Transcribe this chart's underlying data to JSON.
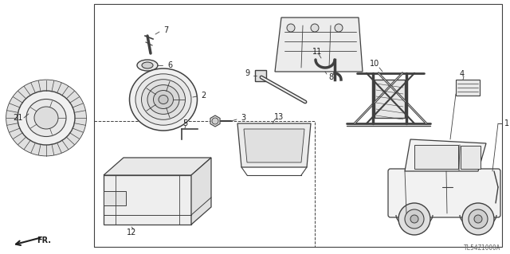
{
  "bg_color": "#f5f5f0",
  "line_color": "#404040",
  "text_color": "#202020",
  "diagram_code": "TL54Z1000A",
  "figsize": [
    6.4,
    3.19
  ],
  "dpi": 100
}
